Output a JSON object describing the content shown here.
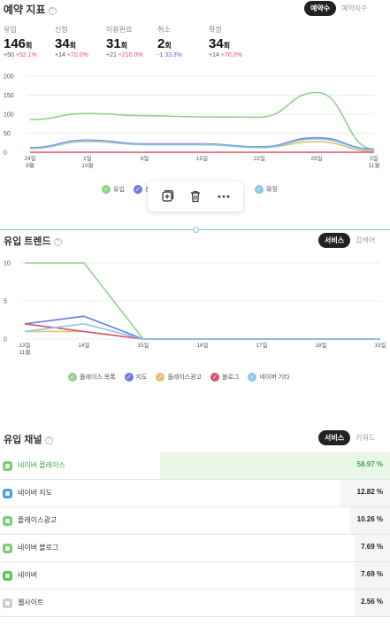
{
  "reservation_metrics": {
    "title": "예약 지표",
    "toggle": {
      "active": "예약수",
      "inactive": "예약지수"
    },
    "stats": [
      {
        "label": "유입",
        "value": "146",
        "unit": "회",
        "delta": "+50",
        "rate": "+52.1%",
        "rate_dir": "up"
      },
      {
        "label": "신청",
        "value": "34",
        "unit": "회",
        "delta": "+14",
        "rate": "+70.0%",
        "rate_dir": "up"
      },
      {
        "label": "이용완료",
        "value": "31",
        "unit": "회",
        "delta": "+21",
        "rate": "+210.0%",
        "rate_dir": "up"
      },
      {
        "label": "취소",
        "value": "2",
        "unit": "회",
        "delta": "-1",
        "rate": "33.3%",
        "rate_dir": "down"
      },
      {
        "label": "확정",
        "value": "34",
        "unit": "회",
        "delta": "+14",
        "rate": "+70.0%",
        "rate_dir": "up"
      }
    ],
    "legend": [
      {
        "label": "유입",
        "color": "#8fd48a"
      },
      {
        "label": "신청",
        "color": "#6b7fe0"
      },
      {
        "label": "확정",
        "color": "#8ac9ec"
      }
    ]
  },
  "toolbar": {
    "icons": [
      "add-frame-icon",
      "trash-icon",
      "more-icon"
    ]
  },
  "inflow_trend": {
    "title": "유입 트렌드",
    "toggle": {
      "active": "서비스",
      "inactive": "검색어"
    },
    "legend": [
      {
        "label": "플레이스 목록",
        "color": "#8fd48a"
      },
      {
        "label": "지도",
        "color": "#6b7fe0"
      },
      {
        "label": "플레이스광고",
        "color": "#e6c06a"
      },
      {
        "label": "블로그",
        "color": "#d9536a"
      },
      {
        "label": "네이버 기타",
        "color": "#8ac9ec"
      }
    ]
  },
  "inflow_channel": {
    "title": "유입 채널",
    "toggle": {
      "active": "서비스",
      "inactive": "키워드"
    },
    "rows": [
      {
        "name": "네이버 플레이스",
        "percent": "58.97 %",
        "share": 0.5897,
        "icon": "place-icon",
        "color": "#7bcf73"
      },
      {
        "name": "네이버 지도",
        "percent": "12.82 %",
        "share": 0.1282,
        "icon": "map-icon",
        "color": "#4aa0e0"
      },
      {
        "name": "플레이스광고",
        "percent": "10.26 %",
        "share": 0.1026,
        "icon": "ad-icon",
        "color": "#7bcf73"
      },
      {
        "name": "네이버 블로그",
        "percent": "7.69 %",
        "share": 0.0769,
        "icon": "blog-icon",
        "color": "#7bcf73"
      },
      {
        "name": "네이버",
        "percent": "7.69 %",
        "share": 0.0769,
        "icon": "naver-icon",
        "color": "#5ac466"
      },
      {
        "name": "웹사이트",
        "percent": "2.56 %",
        "share": 0.0256,
        "icon": "website-icon",
        "color": "#c8cdd8"
      }
    ]
  },
  "chart_data": [
    {
      "type": "line",
      "x": [
        "24일 9월",
        "1일 10월",
        "8일",
        "15일",
        "22일",
        "29일",
        "5일 11월"
      ],
      "ylim": [
        0,
        200
      ],
      "yticks": [
        0,
        50,
        100,
        150,
        200
      ],
      "grid": true,
      "series": [
        {
          "name": "유입",
          "color": "#8fd48a",
          "values": [
            86,
            102,
            96,
            93,
            92,
            157,
            8
          ]
        },
        {
          "name": "신청",
          "color": "#6b7fe0",
          "values": [
            12,
            32,
            22,
            22,
            14,
            38,
            8
          ]
        },
        {
          "name": "",
          "color": "#e6c06a",
          "values": [
            10,
            28,
            20,
            20,
            12,
            28,
            2
          ]
        },
        {
          "name": "",
          "color": "#d9536a",
          "values": [
            0,
            0,
            0,
            0,
            0,
            0,
            0
          ]
        },
        {
          "name": "확정",
          "color": "#8ac9ec",
          "values": [
            10,
            30,
            20,
            20,
            12,
            35,
            6
          ]
        }
      ]
    },
    {
      "type": "line",
      "x": [
        "13일 11월",
        "14일",
        "15일",
        "16일",
        "17일",
        "18일",
        "19일"
      ],
      "ylim": [
        0,
        10
      ],
      "yticks": [
        0,
        5,
        10
      ],
      "grid": true,
      "series": [
        {
          "name": "플레이스 목록",
          "color": "#8fd48a",
          "values": [
            10,
            10,
            0,
            0,
            0,
            0,
            0
          ]
        },
        {
          "name": "지도",
          "color": "#6b7fe0",
          "values": [
            2,
            3,
            0,
            0,
            0,
            0,
            0
          ]
        },
        {
          "name": "플레이스광고",
          "color": "#e6c06a",
          "values": [
            1,
            1,
            0,
            0,
            0,
            0,
            0
          ]
        },
        {
          "name": "블로그",
          "color": "#d9536a",
          "values": [
            2,
            1,
            0,
            0,
            0,
            0,
            0
          ]
        },
        {
          "name": "네이버 기타",
          "color": "#8ac9ec",
          "values": [
            1,
            2,
            0,
            0,
            0,
            0,
            0
          ]
        }
      ]
    }
  ]
}
